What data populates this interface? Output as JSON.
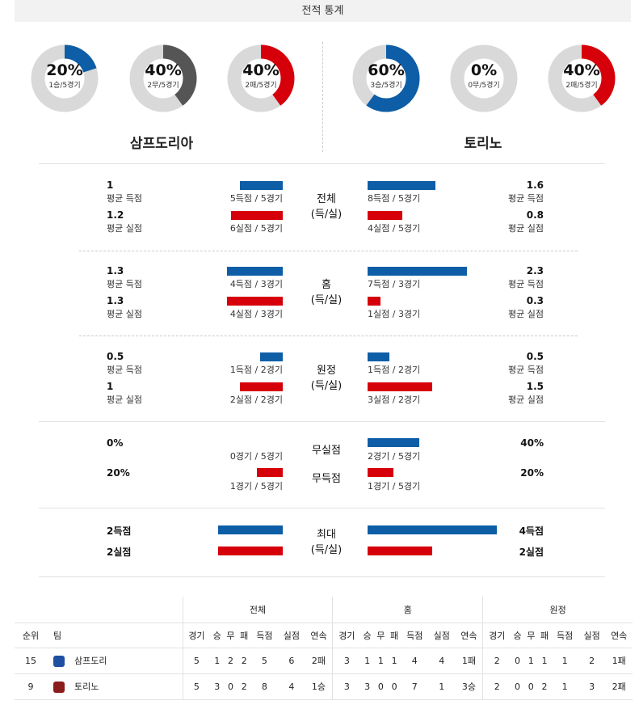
{
  "header": {
    "title": "전적 통계"
  },
  "teams": {
    "home": "삼프도리아",
    "away": "토리노"
  },
  "donuts": [
    {
      "pct": "20%",
      "sub": "1승/5경기",
      "fraction": 0.2,
      "color": "#0d5ea6"
    },
    {
      "pct": "40%",
      "sub": "2무/5경기",
      "fraction": 0.4,
      "color": "#555555"
    },
    {
      "pct": "40%",
      "sub": "2패/5경기",
      "fraction": 0.4,
      "color": "#d6000b"
    },
    {
      "pct": "60%",
      "sub": "3승/5경기",
      "fraction": 0.6,
      "color": "#0d5ea6"
    },
    {
      "pct": "0%",
      "sub": "0무/5경기",
      "fraction": 0.0,
      "color": "#555555"
    },
    {
      "pct": "40%",
      "sub": "2패/5경기",
      "fraction": 0.4,
      "color": "#d6000b"
    }
  ],
  "sections": {
    "total": {
      "center": "전체\n(득/실)",
      "home": {
        "goals": "1",
        "goals_label": "평균 득점",
        "goals_cap": "5득점 / 5경기",
        "conceded": "1.2",
        "conceded_label": "평균 실점",
        "conceded_cap": "6실점 / 5경기"
      },
      "away": {
        "goals": "1.6",
        "goals_label": "평균 득점",
        "goals_cap": "8득점 / 5경기",
        "conceded": "0.8",
        "conceded_label": "평균 실점",
        "conceded_cap": "4실점 / 5경기"
      }
    },
    "home": {
      "center": "홈\n(득/실)",
      "home": {
        "goals": "1.3",
        "goals_label": "평균 득점",
        "goals_cap": "4득점 / 3경기",
        "conceded": "1.3",
        "conceded_label": "평균 실점",
        "conceded_cap": "4실점 / 3경기"
      },
      "away": {
        "goals": "2.3",
        "goals_label": "평균 득점",
        "goals_cap": "7득점 / 3경기",
        "conceded": "0.3",
        "conceded_label": "평균 실점",
        "conceded_cap": "1실점 / 3경기"
      }
    },
    "away": {
      "center": "원정\n(득/실)",
      "home": {
        "goals": "0.5",
        "goals_label": "평균 득점",
        "goals_cap": "1득점 / 2경기",
        "conceded": "1",
        "conceded_label": "평균 실점",
        "conceded_cap": "2실점 / 2경기"
      },
      "away": {
        "goals": "0.5",
        "goals_label": "평균 득점",
        "goals_cap": "1득점 / 2경기",
        "conceded": "1.5",
        "conceded_label": "평균 실점",
        "conceded_cap": "3실점 / 2경기"
      }
    },
    "clean": {
      "center1": "무실점",
      "center2": "무득점",
      "home": {
        "clean": "0%",
        "clean_cap": "0경기 / 5경기",
        "noscore": "20%",
        "noscore_cap": "1경기 / 5경기"
      },
      "away": {
        "clean": "40%",
        "clean_cap": "2경기 / 5경기",
        "noscore": "20%",
        "noscore_cap": "1경기 / 5경기"
      }
    },
    "max": {
      "center": "최대\n(득/실)",
      "home": {
        "goals": "2득점",
        "conceded": "2실점"
      },
      "away": {
        "goals": "4득점",
        "conceded": "2실점"
      }
    }
  },
  "table": {
    "groups": [
      "전체",
      "홈",
      "원정"
    ],
    "col_rank": "순위",
    "col_team": "팀",
    "cols": [
      "경기",
      "승",
      "무",
      "패",
      "득점",
      "실점",
      "연속"
    ],
    "rows": [
      {
        "rank": "15",
        "team": "삼프도리",
        "logo_color": "#1f4fa0",
        "total": [
          "5",
          "1",
          "2",
          "2",
          "5",
          "6",
          "2패"
        ],
        "home": [
          "3",
          "1",
          "1",
          "1",
          "4",
          "4",
          "1패"
        ],
        "away": [
          "2",
          "0",
          "1",
          "1",
          "1",
          "2",
          "1패"
        ]
      },
      {
        "rank": "9",
        "team": "토리노",
        "logo_color": "#8a1c1c",
        "total": [
          "5",
          "3",
          "0",
          "2",
          "8",
          "4",
          "1승"
        ],
        "home": [
          "3",
          "3",
          "0",
          "0",
          "7",
          "1",
          "3승"
        ],
        "away": [
          "2",
          "0",
          "0",
          "2",
          "1",
          "3",
          "2패"
        ]
      }
    ]
  }
}
